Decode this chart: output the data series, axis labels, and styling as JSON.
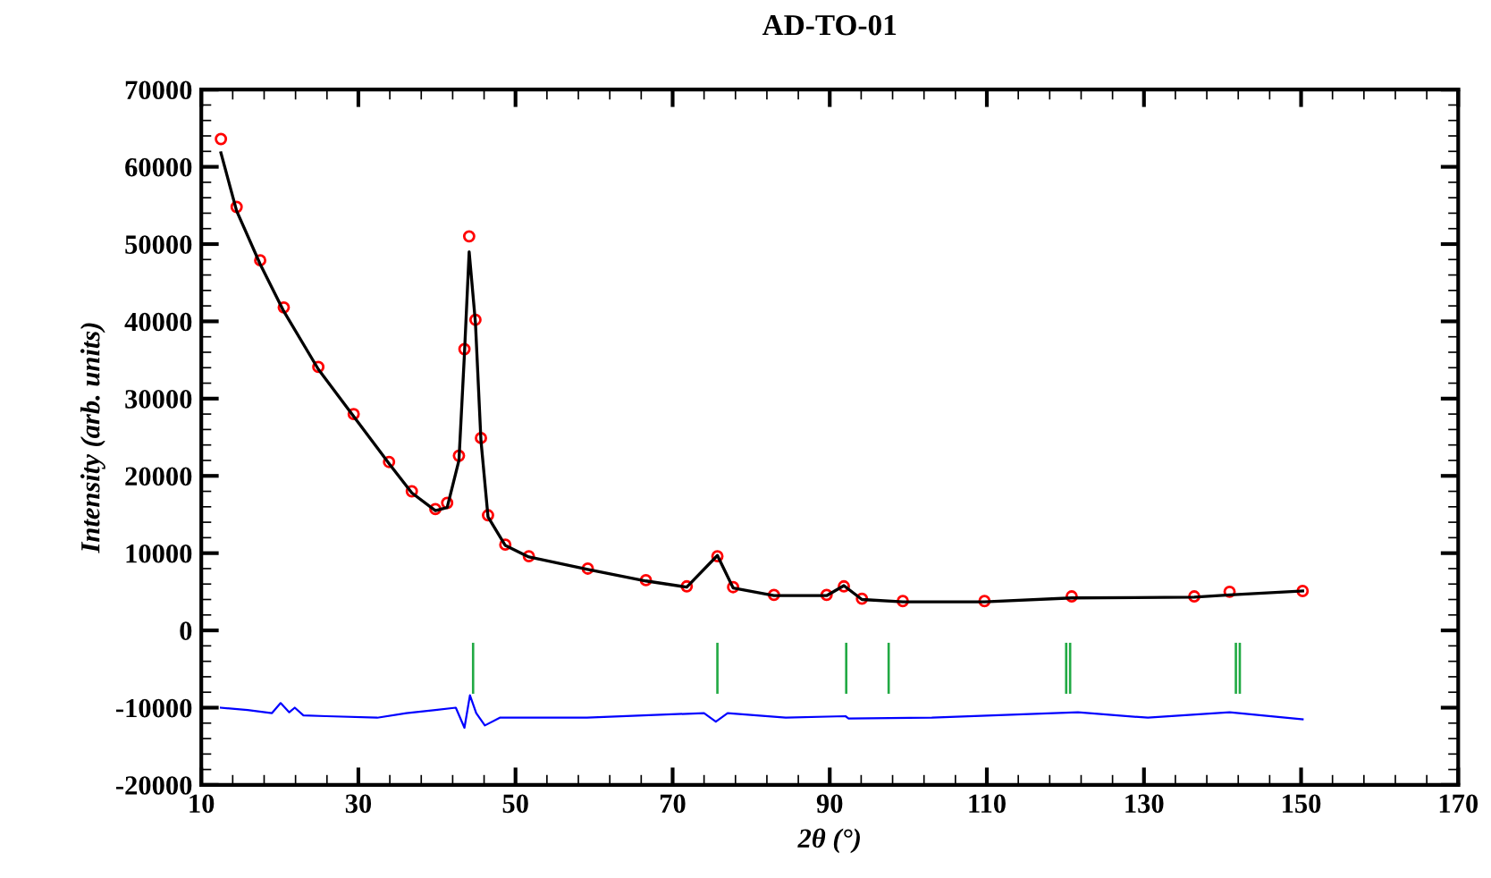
{
  "chart_data": {
    "type": "line",
    "title": "AD-TO-01",
    "xlabel": "2θ (°)",
    "ylabel": "Intensity (arb. units)",
    "xlim": [
      10,
      170
    ],
    "xticks": [
      10,
      30,
      50,
      70,
      90,
      110,
      130,
      150,
      170
    ],
    "ylim": [
      -20000,
      70000
    ],
    "yticks": [
      -20000,
      -10000,
      0,
      10000,
      20000,
      30000,
      40000,
      50000,
      60000,
      70000
    ],
    "grid": false,
    "legend": false,
    "series": [
      {
        "type": "scatter",
        "marker": "circle",
        "color": "#ff0000",
        "x": [
          12.5,
          14.5,
          17.5,
          20.5,
          24.9,
          29.4,
          33.9,
          36.8,
          39.8,
          41.3,
          42.8,
          43.5,
          44.1,
          44.9,
          45.6,
          46.5,
          48.7,
          51.7,
          59.2,
          66.6,
          71.8,
          75.7,
          77.7,
          82.9,
          89.6,
          91.8,
          94.1,
          99.3,
          109.7,
          120.8,
          136.4,
          140.9,
          150.2
        ],
        "values": [
          63600,
          54800,
          47900,
          41800,
          34100,
          28000,
          21800,
          18000,
          15700,
          16500,
          22600,
          36400,
          51000,
          40200,
          24900,
          14900,
          11100,
          9600,
          8000,
          6500,
          5700,
          9600,
          5600,
          4600,
          4600,
          5700,
          4100,
          3800,
          3800,
          4400,
          4400,
          5000,
          5100
        ]
      },
      {
        "color": "#000000",
        "x": [
          12.5,
          14.5,
          17.5,
          20.5,
          24.9,
          29.4,
          33.9,
          36.8,
          39.8,
          41.3,
          42.8,
          43.5,
          44.1,
          44.9,
          45.6,
          46.5,
          48.7,
          51.7,
          59.2,
          66.6,
          71.8,
          75.7,
          77.7,
          82.9,
          89.6,
          91.8,
          94.1,
          99.3,
          109.7,
          120.8,
          136.4,
          140.9,
          150.2
        ],
        "values": [
          61800,
          54300,
          47400,
          41300,
          33800,
          27700,
          21600,
          17800,
          15500,
          15900,
          22000,
          35800,
          49000,
          39800,
          24600,
          14700,
          11000,
          9500,
          7900,
          6400,
          5600,
          9700,
          5500,
          4500,
          4500,
          5800,
          4000,
          3700,
          3700,
          4200,
          4300,
          4600,
          5100
        ]
      },
      {
        "color": "#0000ff",
        "x": [
          12.5,
          15.9,
          19.0,
          20.1,
          21.2,
          21.9,
          23.0,
          25.9,
          32.4,
          36.1,
          39.8,
          42.4,
          43.5,
          44.2,
          45.0,
          46.1,
          48.0,
          59.1,
          74.0,
          75.5,
          77.0,
          84.4,
          92.0,
          92.4,
          103.0,
          121.6,
          130.5,
          140.9,
          150.2
        ],
        "values": [
          -10000,
          -10300,
          -10700,
          -9400,
          -10600,
          -10000,
          -11000,
          -11100,
          -11300,
          -10700,
          -10300,
          -10000,
          -12600,
          -8400,
          -10700,
          -12300,
          -11300,
          -11300,
          -10700,
          -11800,
          -10700,
          -11300,
          -11100,
          -11400,
          -11300,
          -10600,
          -11300,
          -10600,
          -11500
        ]
      },
      {
        "type": "bar",
        "color": "#22aa44",
        "x": [
          44.6,
          75.7,
          92.1,
          97.5,
          120.1,
          120.6,
          141.7,
          142.2
        ],
        "values": [
          6600,
          6600,
          6600,
          6600,
          6600,
          6600,
          6600,
          6600
        ],
        "base": [
          -8200,
          -8200,
          -8200,
          -8200,
          -8200,
          -8200,
          -8200,
          -8200
        ]
      }
    ]
  }
}
